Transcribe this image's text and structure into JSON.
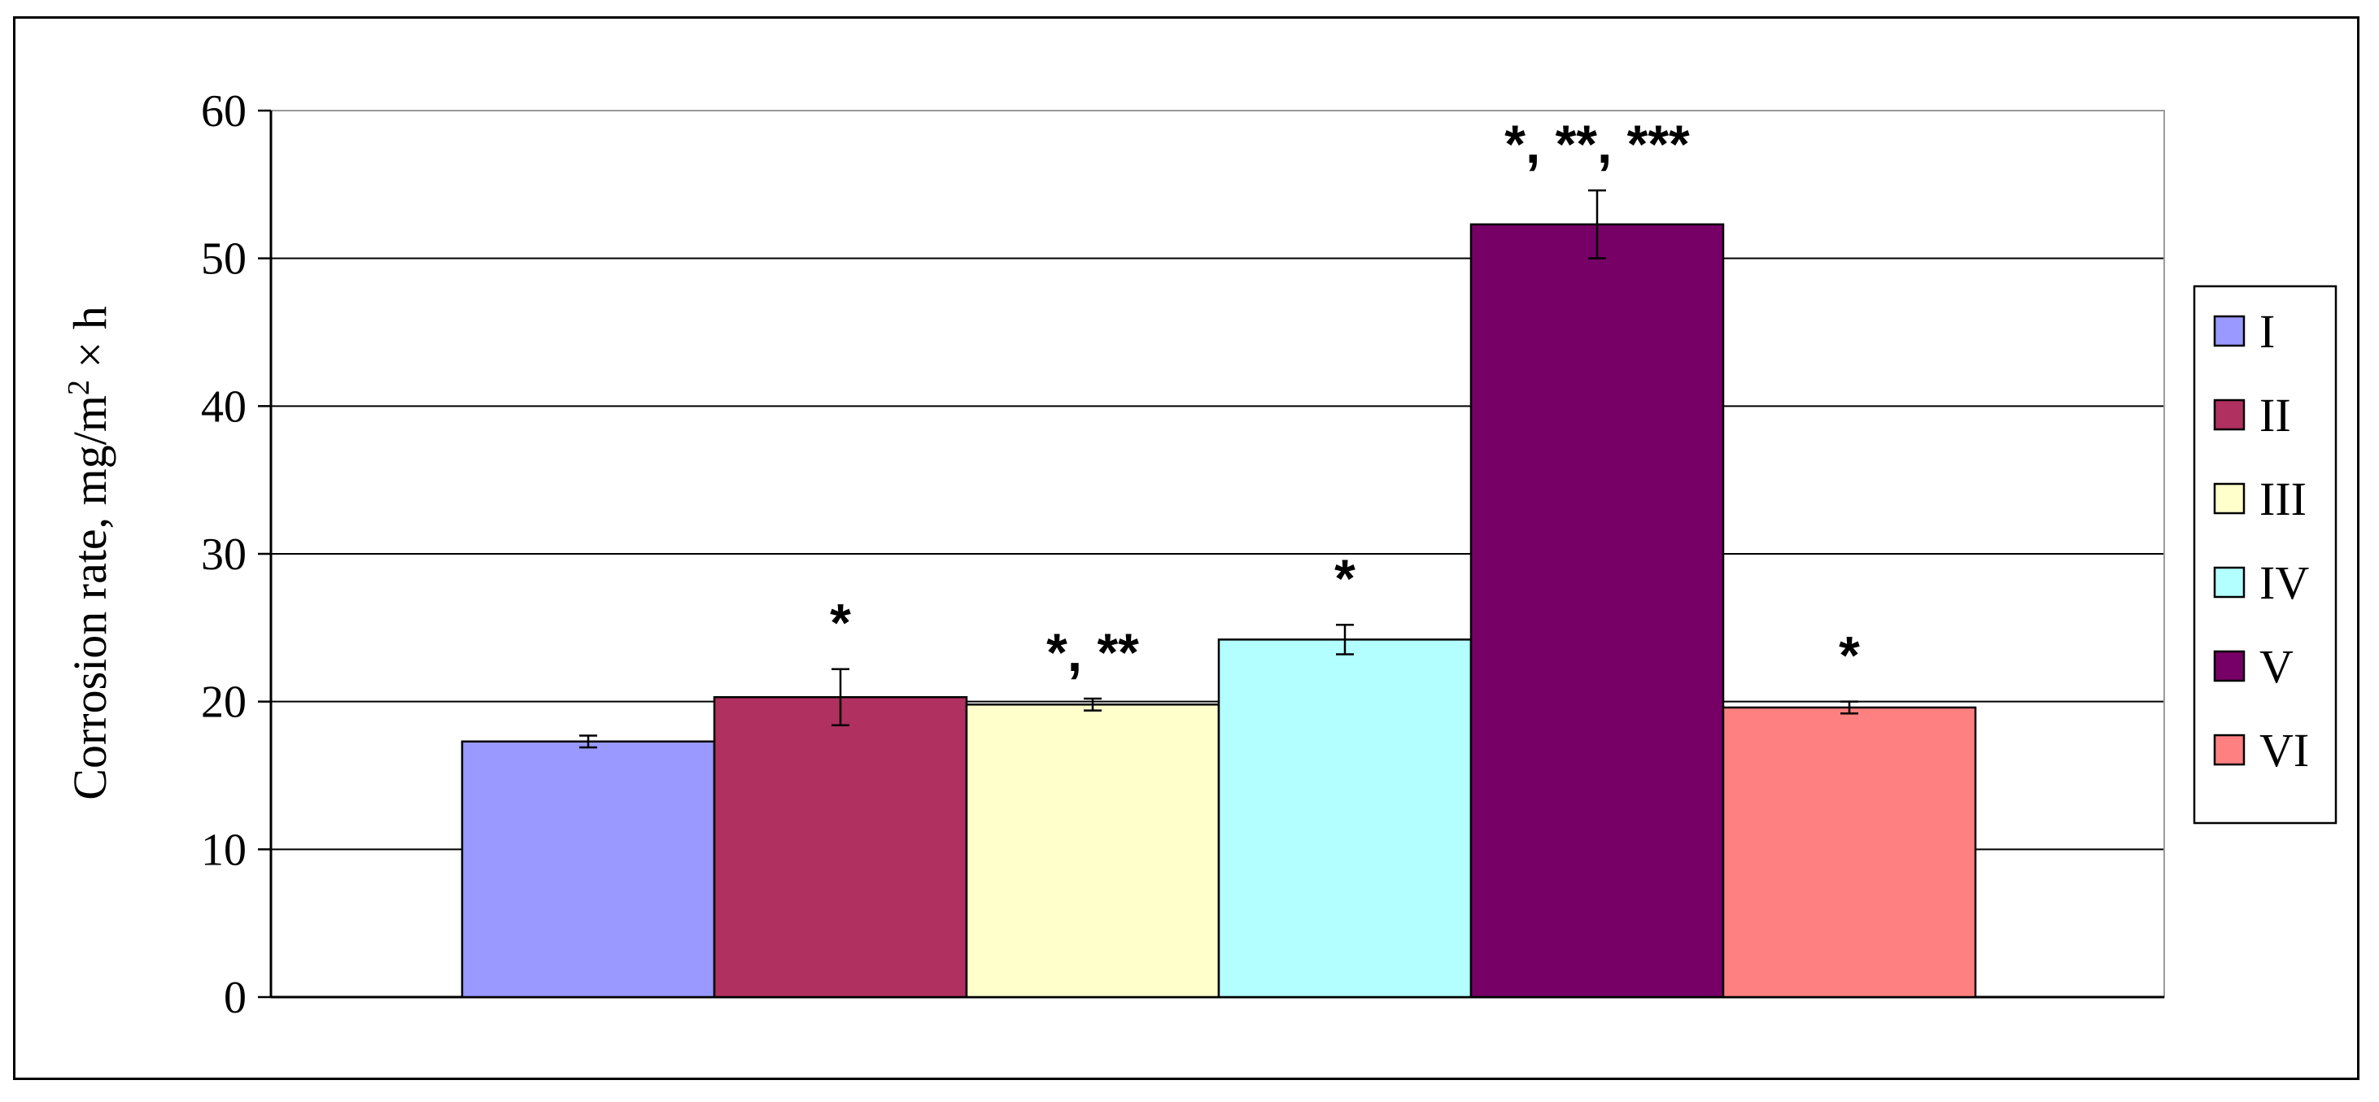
{
  "chart_data": {
    "type": "bar",
    "categories": [
      "I",
      "II",
      "III",
      "IV",
      "V",
      "VI"
    ],
    "values": [
      17.3,
      20.3,
      19.8,
      24.2,
      52.3,
      19.6
    ],
    "errors": [
      0.4,
      1.9,
      0.4,
      1.0,
      2.3,
      0.4
    ],
    "annotations": [
      "",
      "*",
      "*, **",
      "*",
      "*, **, ***",
      "*"
    ],
    "colors": [
      "#9999ff",
      "#b03060",
      "#ffffcc",
      "#b3ffff",
      "#770066",
      "#ff8080"
    ],
    "ylabel": "Corrosion rate, mg/m",
    "ylabel_exponent": "2",
    "ylabel_suffix": " × h",
    "ylim": [
      0,
      60
    ],
    "yticks": [
      "0",
      "10",
      "20",
      "30",
      "40",
      "50",
      "60"
    ],
    "grid": true,
    "legend_position": "right"
  }
}
